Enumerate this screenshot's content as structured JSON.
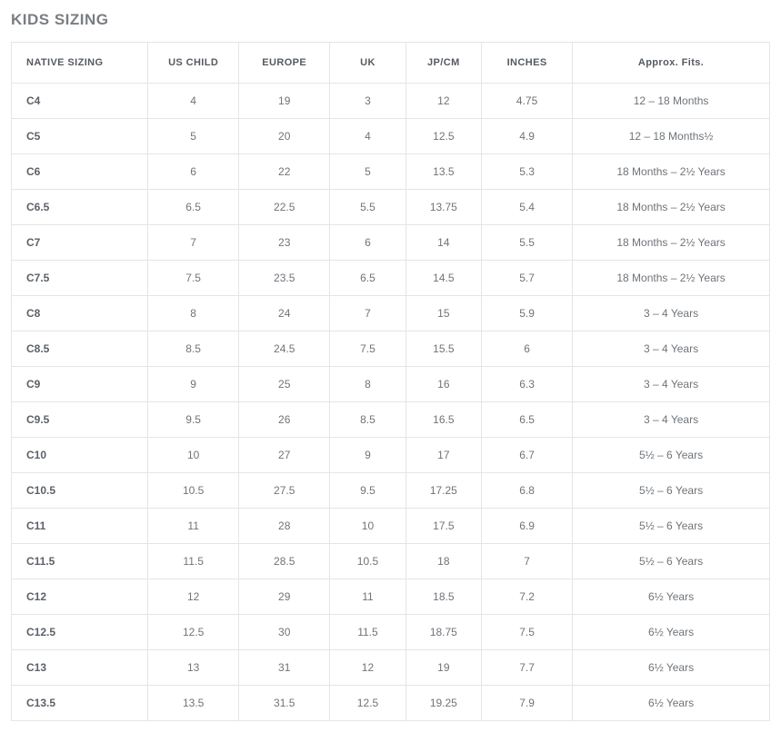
{
  "page": {
    "title": "KIDS SIZING"
  },
  "table": {
    "type": "table",
    "background_color": "#ffffff",
    "border_color": "#e5e5e5",
    "header_text_color": "#555a60",
    "cell_text_color": "#6f7479",
    "first_col_text_color": "#5c6168",
    "header_fontsize": 11,
    "cell_fontsize": 12,
    "columns": [
      {
        "label": "NATIVE SIZING",
        "align": "left",
        "width_pct": 18
      },
      {
        "label": "US CHILD",
        "align": "center",
        "width_pct": 12
      },
      {
        "label": "EUROPE",
        "align": "center",
        "width_pct": 12
      },
      {
        "label": "UK",
        "align": "center",
        "width_pct": 10
      },
      {
        "label": "JP/CM",
        "align": "center",
        "width_pct": 10
      },
      {
        "label": "INCHES",
        "align": "center",
        "width_pct": 12
      },
      {
        "label": "Approx. Fits.",
        "align": "center",
        "width_pct": 26
      }
    ],
    "rows": [
      [
        "C4",
        "4",
        "19",
        "3",
        "12",
        "4.75",
        "12 – 18 Months"
      ],
      [
        "C5",
        "5",
        "20",
        "4",
        "12.5",
        "4.9",
        "12 – 18 Months½"
      ],
      [
        "C6",
        "6",
        "22",
        "5",
        "13.5",
        "5.3",
        "18 Months – 2½ Years"
      ],
      [
        "C6.5",
        "6.5",
        "22.5",
        "5.5",
        "13.75",
        "5.4",
        "18 Months – 2½ Years"
      ],
      [
        "C7",
        "7",
        "23",
        "6",
        "14",
        "5.5",
        "18 Months – 2½ Years"
      ],
      [
        "C7.5",
        "7.5",
        "23.5",
        "6.5",
        "14.5",
        "5.7",
        "18 Months – 2½ Years"
      ],
      [
        "C8",
        "8",
        "24",
        "7",
        "15",
        "5.9",
        "3 – 4 Years"
      ],
      [
        "C8.5",
        "8.5",
        "24.5",
        "7.5",
        "15.5",
        "6",
        "3 – 4 Years"
      ],
      [
        "C9",
        "9",
        "25",
        "8",
        "16",
        "6.3",
        "3 – 4 Years"
      ],
      [
        "C9.5",
        "9.5",
        "26",
        "8.5",
        "16.5",
        "6.5",
        "3 – 4 Years"
      ],
      [
        "C10",
        "10",
        "27",
        "9",
        "17",
        "6.7",
        "5½ – 6 Years"
      ],
      [
        "C10.5",
        "10.5",
        "27.5",
        "9.5",
        "17.25",
        "6.8",
        "5½ – 6 Years"
      ],
      [
        "C11",
        "11",
        "28",
        "10",
        "17.5",
        "6.9",
        "5½ – 6 Years"
      ],
      [
        "C11.5",
        "11.5",
        "28.5",
        "10.5",
        "18",
        "7",
        "5½ – 6 Years"
      ],
      [
        "C12",
        "12",
        "29",
        "11",
        "18.5",
        "7.2",
        "6½ Years"
      ],
      [
        "C12.5",
        "12.5",
        "30",
        "11.5",
        "18.75",
        "7.5",
        "6½ Years"
      ],
      [
        "C13",
        "13",
        "31",
        "12",
        "19",
        "7.7",
        "6½ Years"
      ],
      [
        "C13.5",
        "13.5",
        "31.5",
        "12.5",
        "19.25",
        "7.9",
        "6½ Years"
      ]
    ]
  }
}
